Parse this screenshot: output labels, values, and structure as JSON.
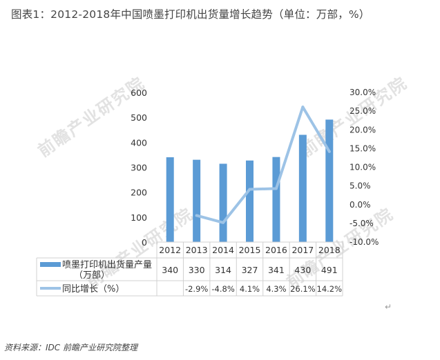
{
  "title": "图表1：2012-2018年中国喷墨打印机出货量增长趋势（单位：万部，%）",
  "source": "资料来源：IDC 前瞻产业研究院整理",
  "watermark": "前瞻产业研究院",
  "return_mark": "↵",
  "colors": {
    "bar": "#5b9bd5",
    "line": "#9dc3e6",
    "grid": "#d0d0d0"
  },
  "chart_data": {
    "type": "bar",
    "categories": [
      "2012",
      "2013",
      "2014",
      "2015",
      "2016",
      "2017",
      "2018"
    ],
    "series": [
      {
        "name": "喷墨打印机出货量产量（万部）",
        "type": "bar",
        "axis": "left",
        "values": [
          340,
          330,
          314,
          327,
          341,
          430,
          491
        ],
        "labels": [
          "340",
          "330",
          "314",
          "327",
          "341",
          "430",
          "491"
        ]
      },
      {
        "name": "同比增长（%）",
        "type": "line",
        "axis": "right",
        "values": [
          null,
          -2.9,
          -4.8,
          4.1,
          4.3,
          26.1,
          14.2
        ],
        "labels": [
          "",
          "-2.9%",
          "-4.8%",
          "4.1%",
          "4.3%",
          "26.1%",
          "14.2%"
        ]
      }
    ],
    "ylim": [
      0,
      600
    ],
    "yticks": [
      "0",
      "100",
      "200",
      "300",
      "400",
      "500",
      "600"
    ],
    "y2lim": [
      -10,
      30
    ],
    "y2ticks": [
      "-10.0%",
      "-5.0%",
      "0.0%",
      "5.0%",
      "10.0%",
      "15.0%",
      "20.0%",
      "25.0%",
      "30.0%"
    ],
    "legend": "bottom data table",
    "grid": false
  }
}
